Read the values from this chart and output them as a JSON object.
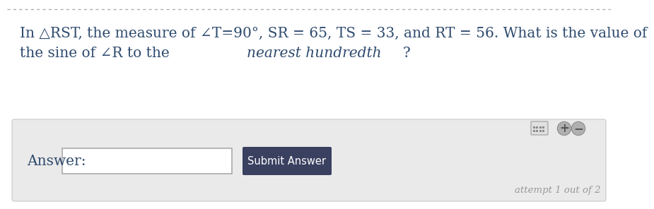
{
  "line1": "In △RST, the measure of ∠T=90°, SR = 65, TS = 33, and RT = 56. What is the value of",
  "line2_normal1": "the sine of ∠R to the ",
  "line2_italic": "nearest hundredth",
  "line2_end": "?",
  "answer_label": "Answer:",
  "button_text": "Submit Answer",
  "attempt_text": "attempt 1 out of 2",
  "bg_color": "#ffffff",
  "panel_bg": "#eaeaea",
  "text_color": "#2e4a6e",
  "button_bg": "#3a4060",
  "button_text_color": "#ffffff",
  "attempt_color": "#999999",
  "border_color": "#cccccc",
  "top_border_color": "#b0b0b0",
  "font_size": 14.5,
  "small_font_size": 9.5
}
